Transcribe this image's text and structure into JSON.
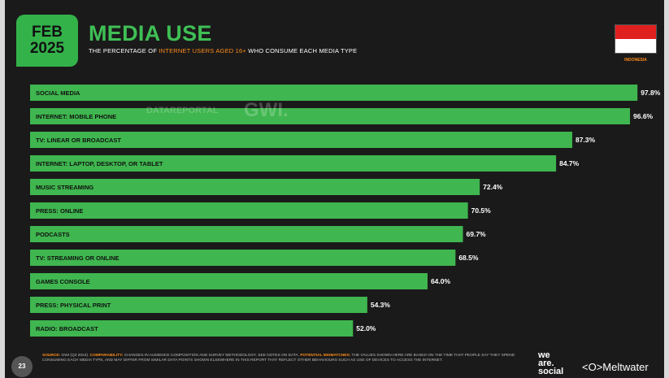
{
  "header": {
    "date_month": "FEB",
    "date_year": "2025",
    "title": "MEDIA USE",
    "subtitle_pre": "THE PERCENTAGE OF ",
    "subtitle_highlight": "INTERNET USERS AGED 16+",
    "subtitle_post": " WHO CONSUME EACH MEDIA TYPE",
    "country": "INDONESIA"
  },
  "watermark": {
    "left": "DATAREPORTAL",
    "right": "GWI."
  },
  "colors": {
    "bar": "#3fb64f",
    "accent": "#ff8c1a",
    "background": "#1a1a1a"
  },
  "chart_data": {
    "type": "bar",
    "orientation": "horizontal",
    "categories": [
      "SOCIAL MEDIA",
      "INTERNET: MOBILE PHONE",
      "TV: LINEAR OR BROADCAST",
      "INTERNET: LAPTOP, DESKTOP, OR TABLET",
      "MUSIC STREAMING",
      "PRESS: ONLINE",
      "PODCASTS",
      "TV: STREAMING OR ONLINE",
      "GAMES CONSOLE",
      "PRESS: PHYSICAL PRINT",
      "RADIO: BROADCAST"
    ],
    "values": [
      97.8,
      96.6,
      87.3,
      84.7,
      72.4,
      70.5,
      69.7,
      68.5,
      64.0,
      54.3,
      52.0
    ],
    "value_labels": [
      "97.8%",
      "96.6%",
      "87.3%",
      "84.7%",
      "72.4%",
      "70.5%",
      "69.7%",
      "68.5%",
      "64.0%",
      "54.3%",
      "52.0%"
    ],
    "xlim": [
      0,
      100
    ]
  },
  "footer": {
    "page_number": "23",
    "source_label": "SOURCE:",
    "source_text": " GWI (Q3 2024). ",
    "comparability_label": "COMPARABILITY:",
    "comparability_text": " CHANGES IN AUDIENCE COMPOSITION AND SURVEY METHODOLOGY. SEE NOTES ON DATA. ",
    "mismatch_label": "POTENTIAL MISMATCHES:",
    "mismatch_text": " THE VALUES SHOWN HERE ARE BASED ON THE TIME THAT PEOPLE SAY THEY SPEND CONSUMING EACH MEDIA TYPE, AND MAY DIFFER FROM SIMILAR DATA POINTS SHOWN ELSEWHERE IN THIS REPORT THAT REFLECT OTHER BEHAVIOURS SUCH AS USE OF DEVICES TO ACCESS THE INTERNET.",
    "brand_was_1": "we",
    "brand_was_2": "are.",
    "brand_was_3": "social",
    "brand_meltwater": "Meltwater"
  }
}
